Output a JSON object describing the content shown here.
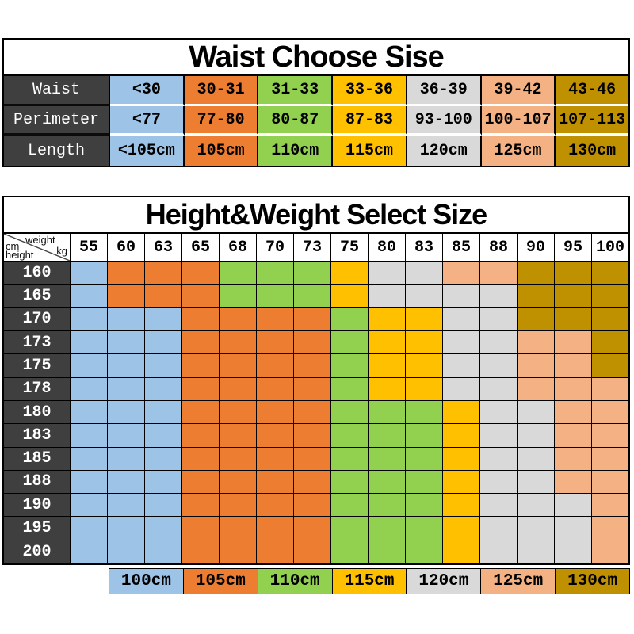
{
  "colors": {
    "blue": "#9DC3E6",
    "orange": "#ED7D31",
    "green": "#92D050",
    "yellow": "#FFC000",
    "gray": "#D9D9D9",
    "peach": "#F4B183",
    "gold": "#BF9000",
    "header_bg": "#3F3F3F"
  },
  "size_colors": {
    "100": "blue",
    "105": "orange",
    "110": "green",
    "115": "yellow",
    "120": "gray",
    "125": "peach",
    "130": "gold"
  },
  "corner_cell": {
    "weight_label": "weight",
    "weight_unit": "kg",
    "height_unit": "cm",
    "height_label": "height"
  },
  "chart_data": [
    {
      "type": "table",
      "title": "Waist Choose Sise",
      "row_headers": [
        "Waist",
        "Perimeter",
        "Length"
      ],
      "rows": [
        [
          "<30",
          "30-31",
          "31-33",
          "33-36",
          "36-39",
          "39-42",
          "43-46"
        ],
        [
          "<77",
          "77-80",
          "80-87",
          "87-83",
          "93-100",
          "100-107",
          "107-113"
        ],
        [
          "<105cm",
          "105cm",
          "110cm",
          "115cm",
          "120cm",
          "125cm",
          "130cm"
        ]
      ],
      "column_colors": [
        "blue",
        "orange",
        "green",
        "yellow",
        "gray",
        "peach",
        "gold"
      ]
    },
    {
      "type": "heatmap",
      "title": "Height&Weight Select Size",
      "xlabel": "weight kg",
      "ylabel": "height cm",
      "x": [
        "55",
        "60",
        "63",
        "65",
        "68",
        "70",
        "73",
        "75",
        "80",
        "83",
        "85",
        "88",
        "90",
        "95",
        "100"
      ],
      "y": [
        "160",
        "165",
        "170",
        "173",
        "175",
        "178",
        "180",
        "183",
        "185",
        "188",
        "190",
        "195",
        "200"
      ],
      "values": [
        [
          "100",
          "105",
          "105",
          "105",
          "110",
          "110",
          "110",
          "115",
          "120",
          "120",
          "125",
          "125",
          "130",
          "130",
          "130"
        ],
        [
          "100",
          "105",
          "105",
          "105",
          "110",
          "110",
          "110",
          "115",
          "120",
          "120",
          "120",
          "120",
          "130",
          "130",
          "130"
        ],
        [
          "100",
          "100",
          "100",
          "105",
          "105",
          "105",
          "105",
          "110",
          "115",
          "115",
          "120",
          "120",
          "130",
          "130",
          "130"
        ],
        [
          "100",
          "100",
          "100",
          "105",
          "105",
          "105",
          "105",
          "110",
          "115",
          "115",
          "120",
          "120",
          "125",
          "125",
          "130"
        ],
        [
          "100",
          "100",
          "100",
          "105",
          "105",
          "105",
          "105",
          "110",
          "115",
          "115",
          "120",
          "120",
          "125",
          "125",
          "130"
        ],
        [
          "100",
          "100",
          "100",
          "105",
          "105",
          "105",
          "105",
          "110",
          "115",
          "115",
          "120",
          "120",
          "125",
          "125",
          "125"
        ],
        [
          "100",
          "100",
          "100",
          "105",
          "105",
          "105",
          "105",
          "110",
          "110",
          "110",
          "115",
          "120",
          "120",
          "125",
          "125"
        ],
        [
          "100",
          "100",
          "100",
          "105",
          "105",
          "105",
          "105",
          "110",
          "110",
          "110",
          "115",
          "120",
          "120",
          "125",
          "125"
        ],
        [
          "100",
          "100",
          "100",
          "105",
          "105",
          "105",
          "105",
          "110",
          "110",
          "110",
          "115",
          "120",
          "120",
          "125",
          "125"
        ],
        [
          "100",
          "100",
          "100",
          "105",
          "105",
          "105",
          "105",
          "110",
          "110",
          "110",
          "115",
          "120",
          "120",
          "125",
          "125"
        ],
        [
          "100",
          "100",
          "100",
          "105",
          "105",
          "105",
          "105",
          "110",
          "110",
          "110",
          "115",
          "120",
          "120",
          "120",
          "125"
        ],
        [
          "100",
          "100",
          "100",
          "105",
          "105",
          "105",
          "105",
          "110",
          "110",
          "110",
          "115",
          "120",
          "120",
          "120",
          "125"
        ],
        [
          "100",
          "100",
          "100",
          "105",
          "105",
          "105",
          "105",
          "110",
          "110",
          "110",
          "115",
          "120",
          "120",
          "120",
          "125"
        ]
      ],
      "legend_position": "bottom",
      "legend": [
        {
          "label": "100cm",
          "size": "100"
        },
        {
          "label": "105cm",
          "size": "105"
        },
        {
          "label": "110cm",
          "size": "110"
        },
        {
          "label": "115cm",
          "size": "115"
        },
        {
          "label": "120cm",
          "size": "120"
        },
        {
          "label": "125cm",
          "size": "125"
        },
        {
          "label": "130cm",
          "size": "130"
        }
      ]
    }
  ]
}
